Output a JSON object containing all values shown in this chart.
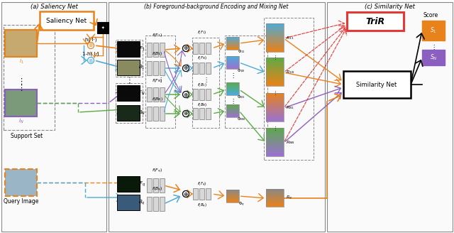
{
  "panel_a_title": "(a) Saliency Net",
  "panel_b_title": "(b) Foreground-background Encoding and Mixing Net",
  "panel_c_title": "(c) Similarity Net",
  "orange": "#E8821A",
  "blue": "#4AABDB",
  "green": "#5AAB46",
  "purple": "#8B5FBF",
  "red": "#E53935",
  "gray": "#AAAAAA",
  "gold": "#E8821A",
  "light_purple": "#9B72CF"
}
